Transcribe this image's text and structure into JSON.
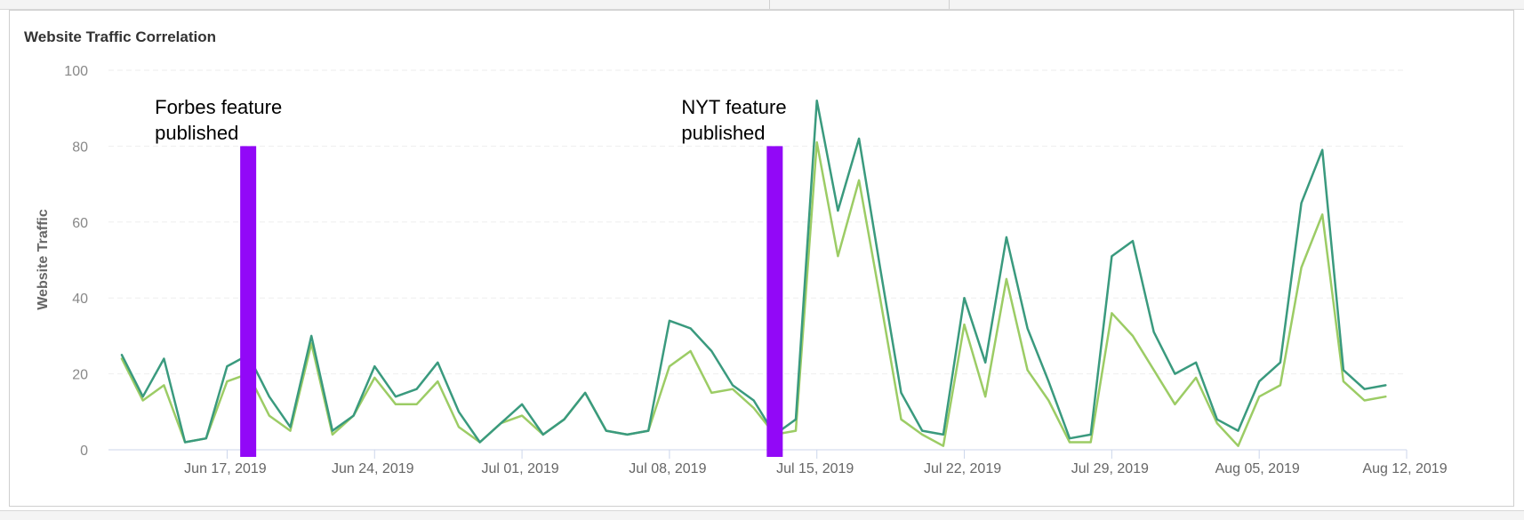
{
  "chart_data": {
    "type": "line",
    "title": "Website Traffic Correlation",
    "ylabel": "Website Traffic",
    "xlabel": "",
    "ylim": [
      0,
      100
    ],
    "y_ticks": [
      0,
      20,
      40,
      60,
      80,
      100
    ],
    "x_start": "2019-06-12",
    "x_end": "2019-08-12",
    "x_ticks": [
      {
        "date": "2019-06-17",
        "label": "Jun 17, 2019"
      },
      {
        "date": "2019-06-24",
        "label": "Jun 24, 2019"
      },
      {
        "date": "2019-07-01",
        "label": "Jul 01, 2019"
      },
      {
        "date": "2019-07-08",
        "label": "Jul 08, 2019"
      },
      {
        "date": "2019-07-15",
        "label": "Jul 15, 2019"
      },
      {
        "date": "2019-07-22",
        "label": "Jul 22, 2019"
      },
      {
        "date": "2019-07-29",
        "label": "Jul 29, 2019"
      },
      {
        "date": "2019-08-05",
        "label": "Aug 05, 2019"
      },
      {
        "date": "2019-08-12",
        "label": "Aug 12, 2019"
      }
    ],
    "grid": true,
    "series": [
      {
        "color": "#3a9a7e",
        "values": [
          25,
          14,
          24,
          2,
          3,
          22,
          25,
          14,
          6,
          30,
          5,
          9,
          22,
          14,
          16,
          23,
          10,
          2,
          7,
          12,
          4,
          8,
          15,
          5,
          4,
          5,
          34,
          32,
          26,
          17,
          13,
          4,
          8,
          92,
          63,
          82,
          48,
          15,
          5,
          4,
          40,
          23,
          56,
          32,
          18,
          3,
          4,
          51,
          55,
          31,
          20,
          23,
          8,
          5,
          18,
          23,
          65,
          79,
          21,
          16,
          17
        ]
      },
      {
        "color": "#9ccc65",
        "values": [
          24,
          13,
          17,
          2,
          3,
          18,
          20,
          9,
          5,
          28,
          4,
          9,
          19,
          12,
          12,
          18,
          6,
          2,
          7,
          9,
          4,
          8,
          15,
          5,
          4,
          5,
          22,
          26,
          15,
          16,
          11,
          4,
          5,
          81,
          51,
          71,
          40,
          8,
          4,
          1,
          33,
          14,
          45,
          21,
          13,
          2,
          2,
          36,
          30,
          21,
          12,
          19,
          7,
          1,
          14,
          17,
          48,
          62,
          18,
          13,
          14
        ]
      }
    ],
    "annotations": [
      {
        "date": "2019-06-18",
        "y_top": 80,
        "color": "#9208f7",
        "label_lines": [
          "Forbes feature",
          "published"
        ]
      },
      {
        "date": "2019-07-13",
        "y_top": 80,
        "color": "#9208f7",
        "label_lines": [
          "NYT feature",
          "published"
        ]
      }
    ]
  }
}
